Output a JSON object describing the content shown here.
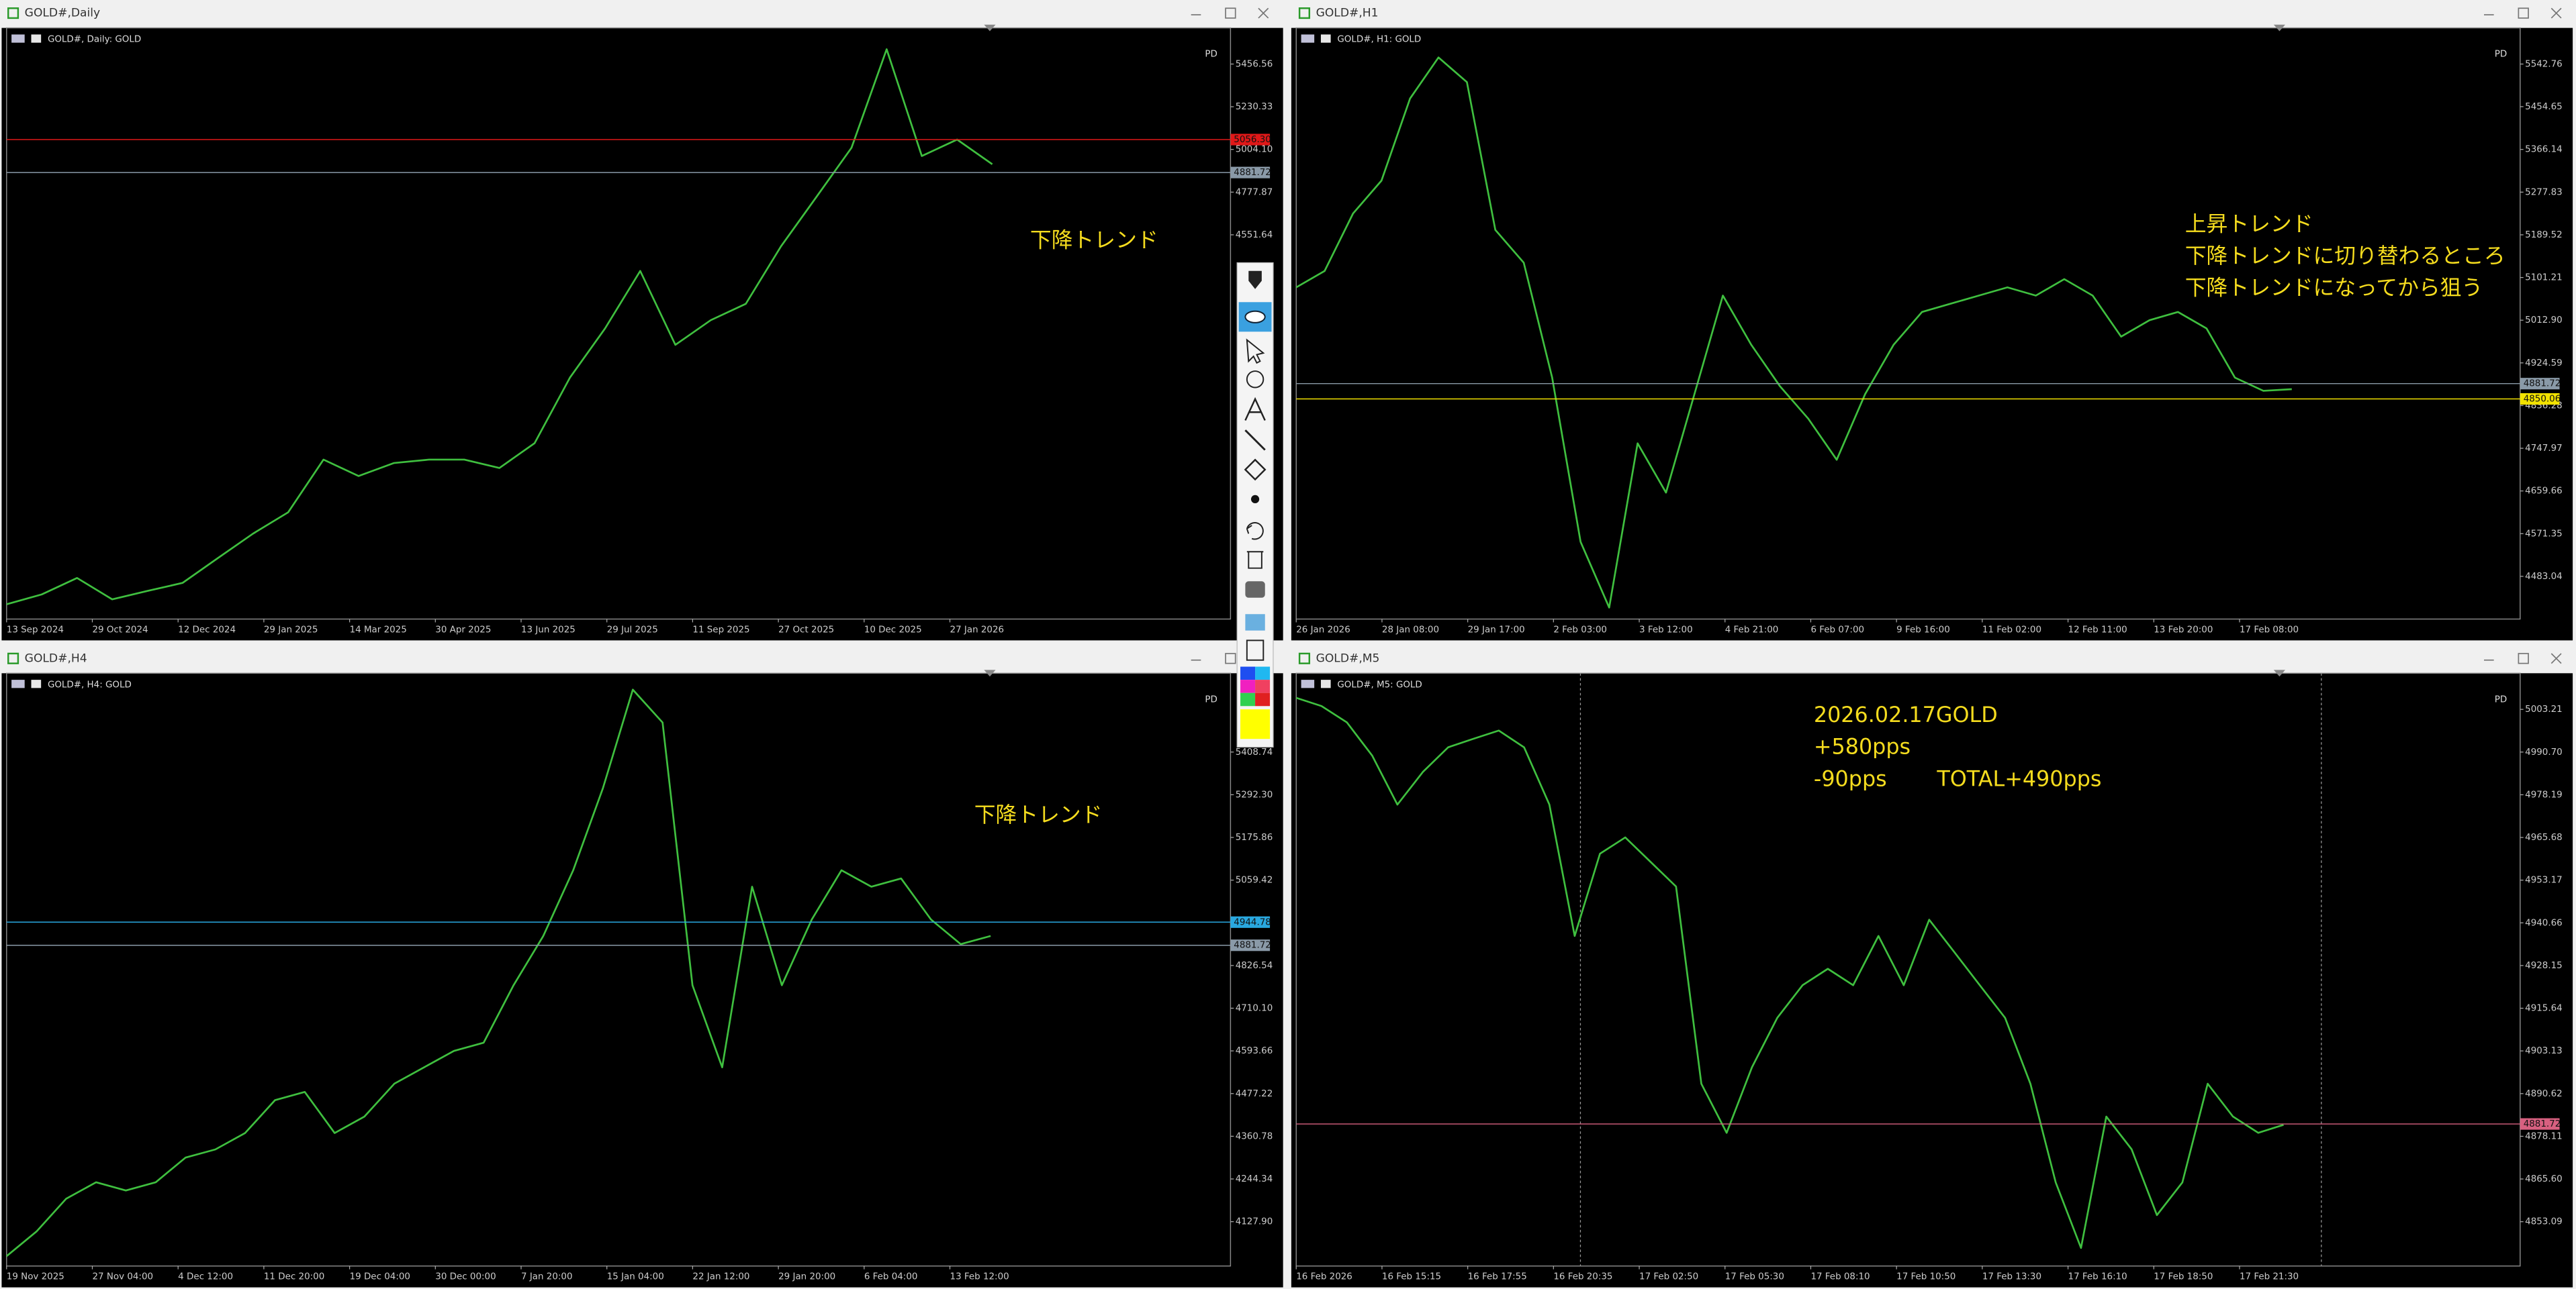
{
  "windows": [
    {
      "title": "GOLD#,Daily",
      "chart_label": "GOLD#, Daily:  GOLD",
      "pd": "PD",
      "ylim": [
        2515.5,
        5648.0
      ],
      "yticks": [
        {
          "value": 5456.56,
          "label": "5456.56"
        },
        {
          "value": 5230.33,
          "label": "5230.33"
        },
        {
          "value": 5004.1,
          "label": "5004.10"
        },
        {
          "value": 4777.87,
          "label": "4777.87"
        },
        {
          "value": 4551.64,
          "label": "4551.64"
        }
      ],
      "price_lines": [
        {
          "value": 5056.3,
          "label": "5056.30",
          "color": "#e01818"
        },
        {
          "value": 4881.72,
          "label": "4881.72",
          "color": "#8a9aa8"
        }
      ],
      "xlabels": [
        "13 Sep 2024",
        "29 Oct 2024",
        "12 Dec 2024",
        "29 Jan 2025",
        "14 Mar 2025",
        "30 Apr 2025",
        "13 Jun 2025",
        "29 Jul 2025",
        "11 Sep 2025",
        "27 Oct 2025",
        "10 Dec 2025",
        "27 Jan 2026"
      ],
      "annotation": [
        "下降トレンド"
      ],
      "series_color": "#3fbf3f",
      "prices": [
        2594,
        2646,
        2733,
        2620,
        2664,
        2707,
        2838,
        2968,
        3081,
        3360,
        3273,
        3342,
        3360,
        3360,
        3316,
        3447,
        3795,
        4056,
        4360,
        3969,
        4099,
        4186,
        4491,
        4752,
        5013,
        5535,
        4969,
        5056,
        4926
      ]
    },
    {
      "title": "GOLD#,H1",
      "chart_label": "GOLD#, H1:  GOLD",
      "pd": "PD",
      "ylim": [
        4394.7,
        5617.5
      ],
      "yticks": [
        {
          "value": 5542.76,
          "label": "5542.76"
        },
        {
          "value": 5454.65,
          "label": "5454.65"
        },
        {
          "value": 5366.14,
          "label": "5366.14"
        },
        {
          "value": 5277.83,
          "label": "5277.83"
        },
        {
          "value": 5189.52,
          "label": "5189.52"
        },
        {
          "value": 5101.21,
          "label": "5101.21"
        },
        {
          "value": 5012.9,
          "label": "5012.90"
        },
        {
          "value": 4924.59,
          "label": "4924.59"
        },
        {
          "value": 4836.28,
          "label": "4836.28"
        },
        {
          "value": 4747.97,
          "label": "4747.97"
        },
        {
          "value": 4659.66,
          "label": "4659.66"
        },
        {
          "value": 4571.35,
          "label": "4571.35"
        },
        {
          "value": 4483.04,
          "label": "4483.04"
        }
      ],
      "price_lines": [
        {
          "value": 4881.72,
          "label": "4881.72",
          "color": "#8a9aa8"
        },
        {
          "value": 4850.06,
          "label": "4850.06",
          "color": "#f2e200"
        }
      ],
      "xlabels": [
        "26 Jan 2026",
        "28 Jan 08:00",
        "29 Jan 17:00",
        "2 Feb 03:00",
        "3 Feb 12:00",
        "4 Feb 21:00",
        "6 Feb 07:00",
        "9 Feb 16:00",
        "11 Feb 02:00",
        "12 Feb 11:00",
        "13 Feb 20:00",
        "17 Feb 08:00"
      ],
      "annotation": [
        "上昇トレンド",
        "下降トレンドに切り替わるところ",
        "下降トレンドになってから狙う"
      ],
      "series_color": "#3fbf3f",
      "prices": [
        5080.9,
        5114.8,
        5233.7,
        5301.6,
        5471.4,
        5556.3,
        5505.4,
        5199.7,
        5131.8,
        4894.0,
        4554.4,
        4418.5,
        4758.2,
        4656.3,
        4860.1,
        5063.9,
        4962.0,
        4877.1,
        4809.2,
        4724.2,
        4860.1,
        4962.0,
        5029.9,
        5046.9,
        5063.9,
        5080.9,
        5063.9,
        5097.8,
        5063.9,
        4979.0,
        5012.9,
        5029.9,
        4996.0,
        4894.0,
        4866.9,
        4870.3
      ]
    },
    {
      "title": "GOLD#,H4",
      "chart_label": "GOLD#, H4:  GOLD",
      "pd": "PD",
      "ylim": [
        4006.9,
        5623.7
      ],
      "yticks": [
        {
          "value": 5408.74,
          "label": "5408.74"
        },
        {
          "value": 5292.3,
          "label": "5292.30"
        },
        {
          "value": 5175.86,
          "label": "5175.86"
        },
        {
          "value": 5059.42,
          "label": "5059.42"
        },
        {
          "value": 4826.54,
          "label": "4826.54"
        },
        {
          "value": 4710.1,
          "label": "4710.10"
        },
        {
          "value": 4593.66,
          "label": "4593.66"
        },
        {
          "value": 4477.22,
          "label": "4477.22"
        },
        {
          "value": 4360.78,
          "label": "4360.78"
        },
        {
          "value": 4244.34,
          "label": "4244.34"
        },
        {
          "value": 4127.9,
          "label": "4127.90"
        }
      ],
      "price_lines": [
        {
          "value": 4944.78,
          "label": "4944.78",
          "color": "#29a8e0"
        },
        {
          "value": 4881.72,
          "label": "4881.72",
          "color": "#8a9aa8"
        }
      ],
      "xlabels": [
        "19 Nov 2025",
        "27 Nov 04:00",
        "4 Dec 12:00",
        "11 Dec 20:00",
        "19 Dec 04:00",
        "30 Dec 00:00",
        "7 Jan 20:00",
        "15 Jan 04:00",
        "22 Jan 12:00",
        "29 Jan 20:00",
        "6 Feb 04:00",
        "13 Feb 12:00"
      ],
      "annotation": [
        "下降トレンド"
      ],
      "series_color": "#3fbf3f",
      "prices": [
        4033.8,
        4101.0,
        4190.5,
        4235.3,
        4212.9,
        4235.3,
        4302.5,
        4324.9,
        4369.7,
        4459.3,
        4481.7,
        4369.7,
        4414.5,
        4504.0,
        4548.8,
        4593.6,
        4616.0,
        4772.8,
        4907.1,
        5086.2,
        5310.2,
        5578.9,
        5489.3,
        4772.8,
        4548.8,
        5041.5,
        4772.8,
        4951.9,
        5086.2,
        5041.5,
        5063.9,
        4951.9,
        4884.7,
        4907.1
      ]
    },
    {
      "title": "GOLD#,M5",
      "chart_label": "GOLD#, M5:  GOLD",
      "pd": "PD",
      "ylim": [
        4840.1,
        5013.8
      ],
      "yticks": [
        {
          "value": 5003.21,
          "label": "5003.21"
        },
        {
          "value": 4990.7,
          "label": "4990.70"
        },
        {
          "value": 4978.19,
          "label": "4978.19"
        },
        {
          "value": 4965.68,
          "label": "4965.68"
        },
        {
          "value": 4953.17,
          "label": "4953.17"
        },
        {
          "value": 4940.66,
          "label": "4940.66"
        },
        {
          "value": 4928.15,
          "label": "4928.15"
        },
        {
          "value": 4915.64,
          "label": "4915.64"
        },
        {
          "value": 4903.13,
          "label": "4903.13"
        },
        {
          "value": 4890.62,
          "label": "4890.62"
        },
        {
          "value": 4878.11,
          "label": "4878.11"
        },
        {
          "value": 4865.6,
          "label": "4865.60"
        },
        {
          "value": 4853.09,
          "label": "4853.09"
        }
      ],
      "price_lines": [
        {
          "value": 4881.72,
          "label": "4881.72",
          "color": "#d86080"
        }
      ],
      "xlabels": [
        "16 Feb 2026",
        "16 Feb 15:15",
        "16 Feb 17:55",
        "16 Feb 20:35",
        "17 Feb 02:50",
        "17 Feb 05:30",
        "17 Feb 08:10",
        "17 Feb 10:50",
        "17 Feb 13:30",
        "17 Feb 16:10",
        "17 Feb 18:50",
        "17 Feb 21:30"
      ],
      "annotation": [
        "2026.02.17GOLD",
        "+580pps",
        "-90pps",
        "TOTAL+490pps"
      ],
      "series_color": "#3fbf3f",
      "prices": [
        5006.6,
        5004.2,
        4999.4,
        4989.7,
        4975.3,
        4984.9,
        4992.1,
        4994.6,
        4997.0,
        4992.1,
        4975.3,
        4936.8,
        4960.9,
        4965.7,
        4958.5,
        4951.3,
        4893.5,
        4879.1,
        4898.3,
        4912.8,
        4922.4,
        4927.2,
        4922.4,
        4936.8,
        4922.4,
        4941.6,
        4932.0,
        4922.4,
        4912.8,
        4893.5,
        4864.6,
        4845.4,
        4883.9,
        4874.3,
        4855.0,
        4864.6,
        4893.5,
        4883.9,
        4879.1,
        4881.5
      ]
    }
  ]
}
